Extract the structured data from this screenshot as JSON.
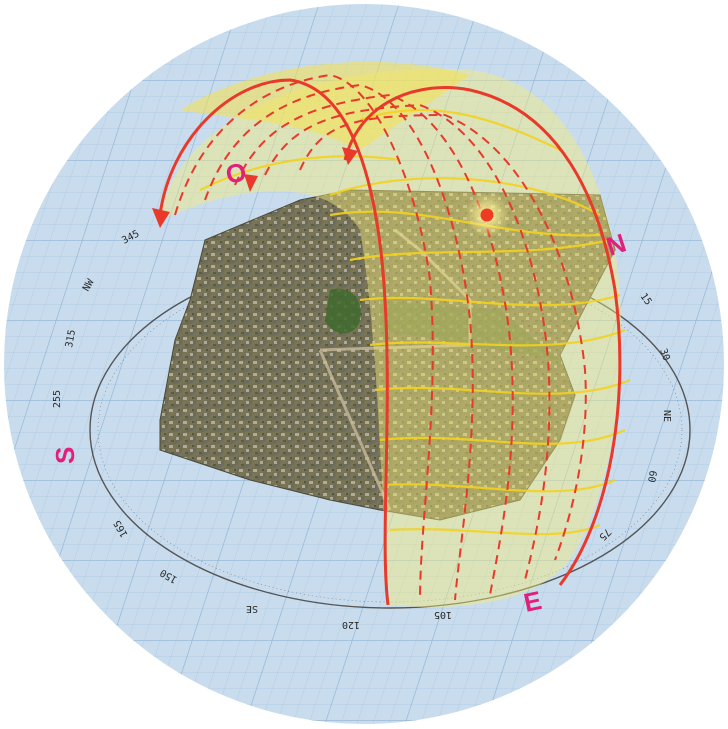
{
  "diagram": {
    "cardinal_labels": {
      "north": "N",
      "south": "S",
      "east": "E",
      "west": "O"
    },
    "compass_labels": [
      {
        "text": "345",
        "name": "compass-label-345"
      },
      {
        "text": "NW",
        "name": "compass-label-nw"
      },
      {
        "text": "315",
        "name": "compass-label-315"
      },
      {
        "text": "255",
        "name": "compass-label-255"
      },
      {
        "text": "165",
        "name": "compass-label-165"
      },
      {
        "text": "150",
        "name": "compass-label-150"
      },
      {
        "text": "SE",
        "name": "compass-label-se"
      },
      {
        "text": "120",
        "name": "compass-label-120"
      },
      {
        "text": "105",
        "name": "compass-label-105"
      },
      {
        "text": "75",
        "name": "compass-label-75"
      },
      {
        "text": "60",
        "name": "compass-label-60"
      },
      {
        "text": "NE",
        "name": "compass-label-ne"
      },
      {
        "text": "30",
        "name": "compass-label-30"
      },
      {
        "text": "15",
        "name": "compass-label-15"
      }
    ],
    "colors": {
      "background_disc": "#c9dced",
      "grid_line": "#9fbfdc",
      "sun_path": "#e8392a",
      "sun_dome": "#f5ec7a",
      "day_arc": "#f3d21f",
      "sun_marker": "#ee3b22",
      "cardinal_text": "#e0207a"
    }
  }
}
